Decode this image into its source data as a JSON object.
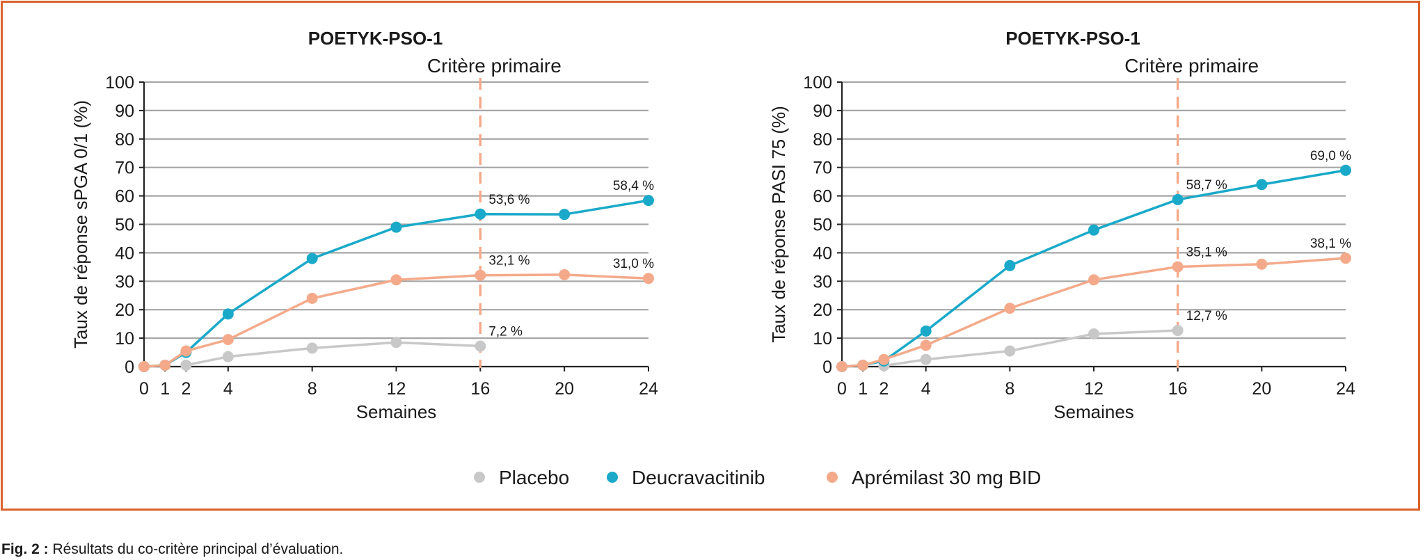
{
  "colors": {
    "frame": "#d9622b",
    "placebo": "#c8c8c8",
    "deucravacitinib": "#1aa9c9",
    "apremilast": "#f4aa8a",
    "primary_marker": "#f4aa8a",
    "grid": "#a6a6a6"
  },
  "legend": [
    {
      "key": "placebo",
      "label": "Placebo"
    },
    {
      "key": "deucravacitinib",
      "label": "Deucravacitinib"
    },
    {
      "key": "apremilast",
      "label": "Aprémilast 30 mg BID"
    }
  ],
  "caption": {
    "prefix": "Fig. 2 :",
    "text": " Résultats du co-critère principal d’évaluation."
  },
  "chart_data": [
    {
      "type": "line",
      "title": "POETYK-PSO-1",
      "annotation": "Critère primaire",
      "primary_endpoint_week": 16,
      "xlabel": "Semaines",
      "ylabel": "Taux de réponse sPGA 0/1 (%)",
      "xlim": [
        0,
        24
      ],
      "ylim": [
        0,
        100
      ],
      "xticks": [
        0,
        1,
        2,
        4,
        8,
        12,
        16,
        20,
        24
      ],
      "yticks": [
        0,
        10,
        20,
        30,
        40,
        50,
        60,
        70,
        80,
        90,
        100
      ],
      "grid": "horizontal",
      "series": [
        {
          "key": "placebo",
          "name": "Placebo",
          "x": [
            2,
            4,
            8,
            12,
            16
          ],
          "y": [
            0.5,
            3.5,
            6.5,
            8.5,
            7.2
          ]
        },
        {
          "key": "deucravacitinib",
          "name": "Deucravacitinib",
          "x": [
            0,
            1,
            2,
            4,
            8,
            12,
            16,
            20,
            24
          ],
          "y": [
            0,
            0.5,
            5,
            18.5,
            38,
            49,
            53.6,
            53.5,
            58.4
          ]
        },
        {
          "key": "apremilast",
          "name": "Aprémilast 30 mg BID",
          "x": [
            0,
            1,
            2,
            4,
            8,
            12,
            16,
            20,
            24
          ],
          "y": [
            0,
            0.5,
            5.5,
            9.5,
            24,
            30.5,
            32.1,
            32.3,
            31
          ]
        }
      ],
      "data_labels": [
        {
          "x": 16,
          "y": 53.6,
          "text": "53,6 %",
          "pos": "right"
        },
        {
          "x": 24,
          "y": 58.4,
          "text": "58,4 %",
          "pos": "left"
        },
        {
          "x": 16,
          "y": 32.1,
          "text": "32,1 %",
          "pos": "right"
        },
        {
          "x": 24,
          "y": 31.0,
          "text": "31,0 %",
          "pos": "left"
        },
        {
          "x": 16,
          "y": 7.2,
          "text": "7,2 %",
          "pos": "right"
        }
      ]
    },
    {
      "type": "line",
      "title": "POETYK-PSO-1",
      "annotation": "Critère primaire",
      "primary_endpoint_week": 16,
      "xlabel": "Semaines",
      "ylabel": "Taux de réponse PASI 75 (%)",
      "xlim": [
        0,
        24
      ],
      "ylim": [
        0,
        100
      ],
      "xticks": [
        0,
        1,
        2,
        4,
        8,
        12,
        16,
        20,
        24
      ],
      "yticks": [
        0,
        10,
        20,
        30,
        40,
        50,
        60,
        70,
        80,
        90,
        100
      ],
      "grid": "horizontal",
      "series": [
        {
          "key": "placebo",
          "name": "Placebo",
          "x": [
            2,
            4,
            8,
            12,
            16
          ],
          "y": [
            0.3,
            2.5,
            5.5,
            11.5,
            12.7
          ]
        },
        {
          "key": "deucravacitinib",
          "name": "Deucravacitinib",
          "x": [
            0,
            1,
            2,
            4,
            8,
            12,
            16,
            20,
            24
          ],
          "y": [
            0,
            0.5,
            2,
            12.5,
            35.5,
            48,
            58.7,
            64,
            69
          ]
        },
        {
          "key": "apremilast",
          "name": "Aprémilast 30 mg BID",
          "x": [
            0,
            1,
            2,
            4,
            8,
            12,
            16,
            20,
            24
          ],
          "y": [
            0,
            0.5,
            2.5,
            7.5,
            20.5,
            30.5,
            35.1,
            36,
            38.1
          ]
        }
      ],
      "data_labels": [
        {
          "x": 16,
          "y": 58.7,
          "text": "58,7 %",
          "pos": "right"
        },
        {
          "x": 24,
          "y": 69.0,
          "text": "69,0 %",
          "pos": "left"
        },
        {
          "x": 16,
          "y": 35.1,
          "text": "35,1 %",
          "pos": "right"
        },
        {
          "x": 24,
          "y": 38.1,
          "text": "38,1 %",
          "pos": "left"
        },
        {
          "x": 16,
          "y": 12.7,
          "text": "12,7 %",
          "pos": "right"
        }
      ]
    }
  ]
}
